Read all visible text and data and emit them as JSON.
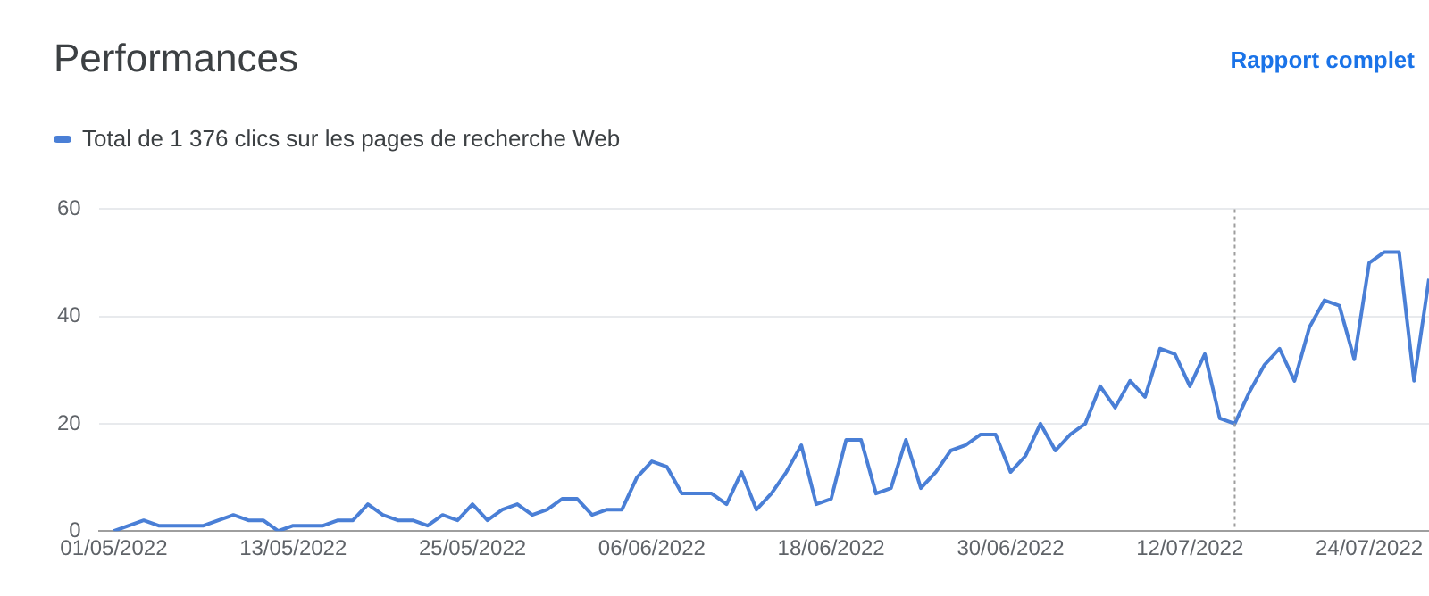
{
  "chart_data": {
    "type": "line",
    "title": "Performances",
    "annotations": [
      "Rapport complet"
    ],
    "x": [
      "2022-05-01",
      "2022-05-02",
      "2022-05-03",
      "2022-05-04",
      "2022-05-05",
      "2022-05-06",
      "2022-05-07",
      "2022-05-08",
      "2022-05-09",
      "2022-05-10",
      "2022-05-11",
      "2022-05-12",
      "2022-05-13",
      "2022-05-14",
      "2022-05-15",
      "2022-05-16",
      "2022-05-17",
      "2022-05-18",
      "2022-05-19",
      "2022-05-20",
      "2022-05-21",
      "2022-05-22",
      "2022-05-23",
      "2022-05-24",
      "2022-05-25",
      "2022-05-26",
      "2022-05-27",
      "2022-05-28",
      "2022-05-29",
      "2022-05-30",
      "2022-05-31",
      "2022-06-01",
      "2022-06-02",
      "2022-06-03",
      "2022-06-04",
      "2022-06-05",
      "2022-06-06",
      "2022-06-07",
      "2022-06-08",
      "2022-06-09",
      "2022-06-10",
      "2022-06-11",
      "2022-06-12",
      "2022-06-13",
      "2022-06-14",
      "2022-06-15",
      "2022-06-16",
      "2022-06-17",
      "2022-06-18",
      "2022-06-19",
      "2022-06-20",
      "2022-06-21",
      "2022-06-22",
      "2022-06-23",
      "2022-06-24",
      "2022-06-25",
      "2022-06-26",
      "2022-06-27",
      "2022-06-28",
      "2022-06-29",
      "2022-06-30",
      "2022-07-01",
      "2022-07-02",
      "2022-07-03",
      "2022-07-04",
      "2022-07-05",
      "2022-07-06",
      "2022-07-07",
      "2022-07-08",
      "2022-07-09",
      "2022-07-10",
      "2022-07-11",
      "2022-07-12",
      "2022-07-13",
      "2022-07-14",
      "2022-07-15",
      "2022-07-16",
      "2022-07-17",
      "2022-07-18",
      "2022-07-19",
      "2022-07-20",
      "2022-07-21",
      "2022-07-22",
      "2022-07-23",
      "2022-07-24",
      "2022-07-25",
      "2022-07-26",
      "2022-07-27",
      "2022-07-28"
    ],
    "series": [
      {
        "name": "Total de 1 376 clics sur les pages de recherche Web",
        "color": "#4a7fd6",
        "values": [
          0,
          1,
          2,
          1,
          1,
          1,
          1,
          2,
          3,
          2,
          2,
          0,
          1,
          1,
          1,
          2,
          2,
          5,
          3,
          2,
          2,
          1,
          3,
          2,
          5,
          2,
          4,
          5,
          3,
          4,
          6,
          6,
          3,
          4,
          4,
          10,
          13,
          12,
          7,
          7,
          7,
          5,
          11,
          4,
          7,
          11,
          16,
          5,
          6,
          17,
          17,
          7,
          8,
          17,
          8,
          11,
          15,
          16,
          18,
          18,
          11,
          14,
          20,
          15,
          18,
          20,
          27,
          23,
          28,
          25,
          34,
          33,
          27,
          33,
          21,
          20,
          26,
          31,
          34,
          28,
          38,
          43,
          42,
          32,
          50,
          52,
          52,
          28,
          47
        ]
      }
    ],
    "xlim": [
      "2022-04-30",
      "2022-07-28"
    ],
    "xticks": [
      {
        "value": "2022-05-01",
        "label": "01/05/2022"
      },
      {
        "value": "2022-05-13",
        "label": "13/05/2022"
      },
      {
        "value": "2022-05-25",
        "label": "25/05/2022"
      },
      {
        "value": "2022-06-06",
        "label": "06/06/2022"
      },
      {
        "value": "2022-06-18",
        "label": "18/06/2022"
      },
      {
        "value": "2022-06-30",
        "label": "30/06/2022"
      },
      {
        "value": "2022-07-12",
        "label": "12/07/2022"
      },
      {
        "value": "2022-07-24",
        "label": "24/07/2022"
      }
    ],
    "ylim": [
      0,
      60
    ],
    "yticks": [
      0,
      20,
      40,
      60
    ],
    "grid": "y",
    "legend": "top left",
    "marker": "none",
    "line_style": "solid",
    "ref_lines": [
      {
        "axis": "x",
        "value": "2022-07-15",
        "color": "#9e9e9e",
        "line_style": "dotted"
      }
    ]
  }
}
